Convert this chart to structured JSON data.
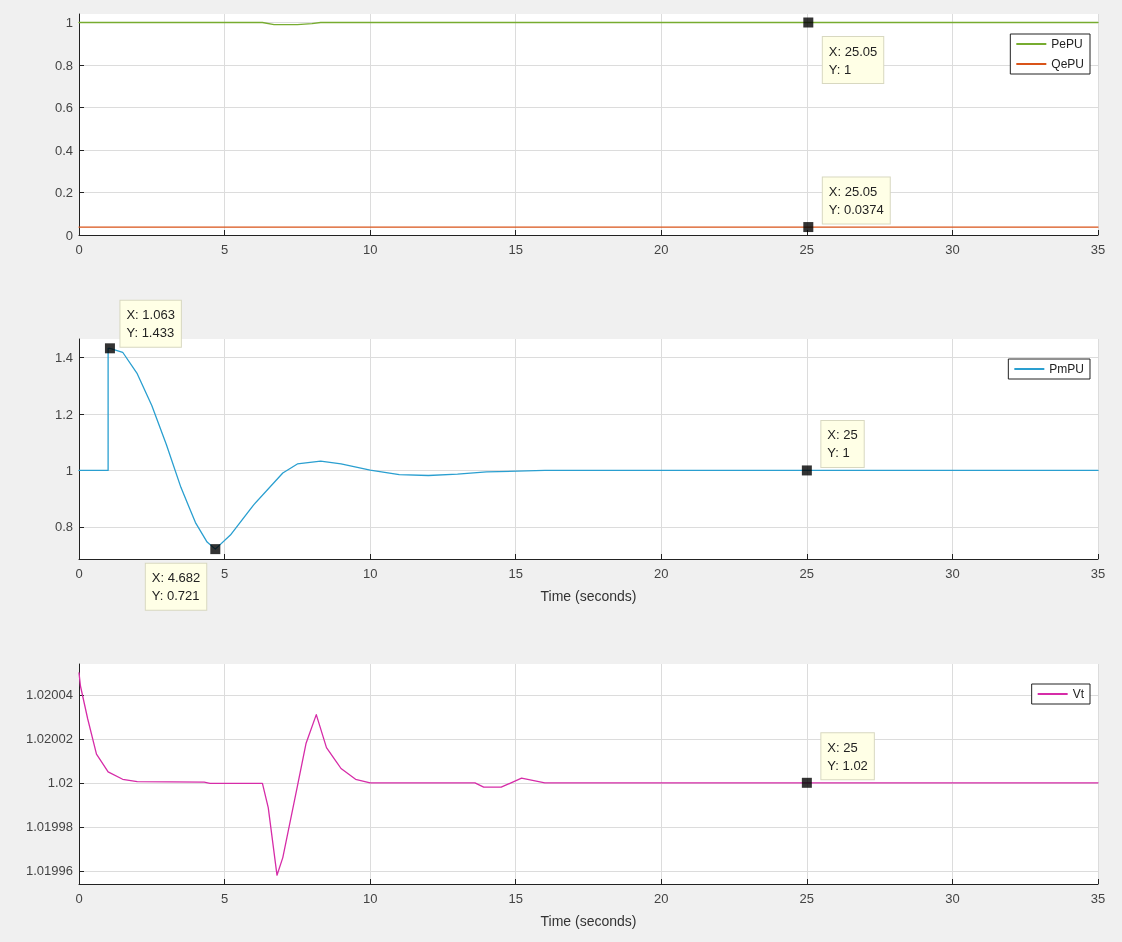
{
  "chart_data": [
    {
      "type": "line",
      "xlim": [
        0,
        35
      ],
      "xticks": [
        0,
        5,
        10,
        15,
        20,
        25,
        30,
        35
      ],
      "ylim": [
        0,
        1.04
      ],
      "yticks": [
        0,
        0.2,
        0.4,
        0.6,
        0.8,
        1
      ],
      "grid": true,
      "legend": "top right",
      "marker": "none",
      "line_style": "solid",
      "series": [
        {
          "name": "PePU",
          "color": "#77ac30",
          "x": [
            0,
            6.3,
            6.7,
            7.5,
            8,
            8.3,
            35
          ],
          "values": [
            1,
            1,
            0.99,
            0.99,
            0.995,
            1,
            1
          ]
        },
        {
          "name": "QePU",
          "color": "#d95319",
          "x": [
            0,
            35
          ],
          "values": [
            0.0374,
            0.0374
          ]
        },
        {
          "type": "scatter",
          "marker": "square",
          "color": "#000000",
          "x": [
            25.05,
            25.05
          ],
          "values": [
            1,
            0.0374
          ]
        }
      ],
      "annotations": [
        {
          "text": "X: 25.05\nY: 1",
          "x": 25.05,
          "y": 1
        },
        {
          "text": "X: 25.05\nY: 0.0374",
          "x": 25.05,
          "y": 0.0374
        }
      ]
    },
    {
      "type": "line",
      "xlabel": "Time (seconds)",
      "xlim": [
        0,
        35
      ],
      "xticks": [
        0,
        5,
        10,
        15,
        20,
        25,
        30,
        35
      ],
      "ylim": [
        0.686,
        1.466
      ],
      "yticks": [
        0.8,
        1,
        1.2,
        1.4
      ],
      "grid": true,
      "legend": "top right",
      "marker": "none",
      "line_style": "solid",
      "series": [
        {
          "name": "PmPU",
          "color": "#2a9fd0",
          "x": [
            0,
            1.0,
            1.0,
            1.063,
            1.5,
            2,
            2.5,
            3,
            3.5,
            4,
            4.4,
            4.682,
            5.2,
            6,
            7,
            7.5,
            8.3,
            9,
            10,
            11,
            12,
            13,
            14,
            16,
            35
          ],
          "values": [
            1,
            1,
            1.433,
            1.433,
            1.419,
            1.343,
            1.23,
            1.092,
            0.94,
            0.815,
            0.746,
            0.721,
            0.771,
            0.878,
            0.991,
            1.023,
            1.033,
            1.023,
            1.001,
            0.985,
            0.982,
            0.987,
            0.995,
            1,
            1
          ]
        },
        {
          "type": "scatter",
          "marker": "square",
          "color": "#000000",
          "x": [
            1.063,
            4.682,
            25
          ],
          "values": [
            1.433,
            0.721,
            1
          ]
        }
      ],
      "annotations": [
        {
          "text": "X: 1.063\nY: 1.433",
          "x": 1.063,
          "y": 1.433
        },
        {
          "text": "X: 4.682\nY: 0.721",
          "x": 4.682,
          "y": 0.721
        },
        {
          "text": "X: 25\nY: 1",
          "x": 25,
          "y": 1
        }
      ]
    },
    {
      "type": "line",
      "xlabel": "Time (seconds)",
      "xlim": [
        0,
        35
      ],
      "xticks": [
        0,
        5,
        10,
        15,
        20,
        25,
        30,
        35
      ],
      "ylim": [
        1.019954,
        1.020054
      ],
      "yticks": [
        1.01996,
        1.01998,
        1.02,
        1.02002,
        1.02004
      ],
      "grid": true,
      "legend": "top right",
      "marker": "none",
      "line_style": "solid",
      "series": [
        {
          "name": "Vt",
          "color": "#d62ca8",
          "x": [
            0,
            0.05,
            0.3,
            0.6,
            1,
            1.5,
            2,
            4.3,
            4.5,
            6.3,
            6.5,
            6.8,
            7,
            7.5,
            7.8,
            8.15,
            8.5,
            9,
            9.5,
            10,
            13.6,
            13.9,
            14.5,
            15.2,
            16,
            35
          ],
          "values": [
            1.02005,
            1.020044,
            1.020029,
            1.020013,
            1.020005,
            1.0200016,
            1.0200005,
            1.0200003,
            1.0199997,
            1.0199997,
            1.0199887,
            1.019958,
            1.019966,
            1.0199984,
            1.020018,
            1.020031,
            1.020016,
            1.0200065,
            1.0200016,
            1.02,
            1.02,
            1.019998,
            1.019998,
            1.0200021,
            1.02,
            1.02
          ]
        },
        {
          "type": "scatter",
          "marker": "square",
          "color": "#000000",
          "x": [
            25
          ],
          "values": [
            1.02
          ]
        }
      ],
      "annotations": [
        {
          "text": "X: 25\nY: 1.02",
          "x": 25,
          "y": 1.02
        }
      ]
    }
  ]
}
